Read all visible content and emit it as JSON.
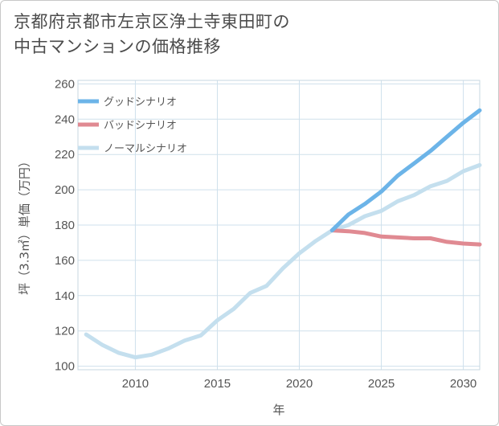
{
  "title_line1": "京都府京都市左京区浄土寺東田町の",
  "title_line2": "中古マンションの価格推移",
  "chart_data": {
    "type": "line",
    "title": "京都府京都市左京区浄土寺東田町の中古マンションの価格推移",
    "xlabel": "年",
    "ylabel": "坪（3.3㎡）単価（万円）",
    "xlim": [
      2006.5,
      2031
    ],
    "ylim": [
      98,
      262
    ],
    "xticks": [
      2010,
      2015,
      2020,
      2025,
      2030
    ],
    "yticks": [
      100,
      120,
      140,
      160,
      180,
      200,
      220,
      240,
      260
    ],
    "grid": true,
    "legend_position": "top-left",
    "series": [
      {
        "name": "グッドシナリオ",
        "color": "#6cb4e8",
        "x": [
          2022,
          2023,
          2024,
          2025,
          2026,
          2027,
          2028,
          2029,
          2030,
          2031
        ],
        "values": [
          177,
          186,
          192,
          199,
          208,
          215,
          222,
          230,
          238,
          245
        ]
      },
      {
        "name": "バッドシナリオ",
        "color": "#e08a92",
        "x": [
          2022,
          2023,
          2024,
          2025,
          2026,
          2027,
          2028,
          2029,
          2030,
          2031
        ],
        "values": [
          177,
          176.5,
          175.5,
          173.5,
          173,
          172.5,
          172.5,
          170.5,
          169.5,
          169
        ]
      },
      {
        "name": "ノーマルシナリオ",
        "color": "#c4dfee",
        "x": [
          2007,
          2008,
          2009,
          2010,
          2011,
          2012,
          2013,
          2014,
          2015,
          2016,
          2017,
          2018,
          2019,
          2020,
          2021,
          2022,
          2023,
          2024,
          2025,
          2026,
          2027,
          2028,
          2029,
          2030,
          2031
        ],
        "values": [
          118,
          112,
          107.5,
          105,
          106.5,
          110,
          114.5,
          117.5,
          126,
          132.5,
          141.5,
          145.5,
          155.5,
          164,
          171,
          177,
          180,
          185,
          188,
          193.5,
          197,
          202,
          205,
          210.5,
          214
        ]
      }
    ]
  }
}
